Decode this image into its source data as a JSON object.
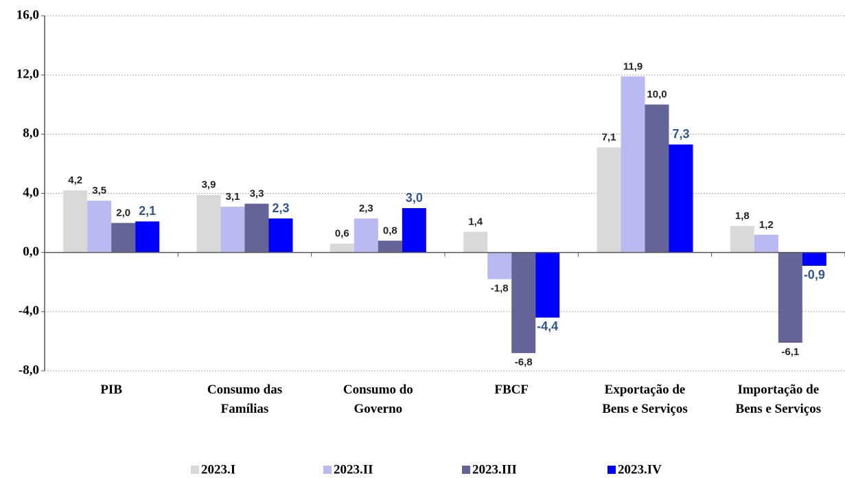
{
  "chart_data": {
    "type": "bar",
    "categories": [
      "PIB",
      "Consumo das\nFamílias",
      "Consumo do\nGoverno",
      "FBCF",
      "Exportação de\nBens e Serviços",
      "Importação de\nBens e Serviços"
    ],
    "series": [
      {
        "name": "2023.I",
        "color": "#d9d9d9",
        "values": [
          4.2,
          3.9,
          0.6,
          1.4,
          7.1,
          1.8
        ],
        "value_labels": [
          "4,2",
          "3,9",
          "0,6",
          "1,4",
          "7,1",
          "1,8"
        ]
      },
      {
        "name": "2023.II",
        "color": "#babaf3",
        "values": [
          3.5,
          3.1,
          2.3,
          -1.8,
          11.9,
          1.2
        ],
        "value_labels": [
          "3,5",
          "3,1",
          "2,3",
          "-1,8",
          "11,9",
          "1,2"
        ]
      },
      {
        "name": "2023.III",
        "color": "#646496",
        "values": [
          2.0,
          3.3,
          0.8,
          -6.8,
          10.0,
          -6.1
        ],
        "value_labels": [
          "2,0",
          "3,3",
          "0,8",
          "-6,8",
          "10,0",
          "-6,1"
        ]
      },
      {
        "name": "2023.IV",
        "color": "#0000ff",
        "values": [
          2.1,
          2.3,
          3.0,
          -4.4,
          7.3,
          -0.9
        ],
        "value_labels": [
          "2,1",
          "2,3",
          "3,0",
          "-4,4",
          "7,3",
          "-0,9"
        ]
      }
    ],
    "ylim": [
      -8,
      16
    ],
    "yticks": [
      {
        "value": -8,
        "label": "-8,0"
      },
      {
        "value": -4,
        "label": "-4,0"
      },
      {
        "value": 0,
        "label": "0,0"
      },
      {
        "value": 4,
        "label": "4,0"
      },
      {
        "value": 8,
        "label": "8,0"
      },
      {
        "value": 12,
        "label": "12,0"
      },
      {
        "value": 16,
        "label": "16,0"
      }
    ],
    "grid": true
  }
}
